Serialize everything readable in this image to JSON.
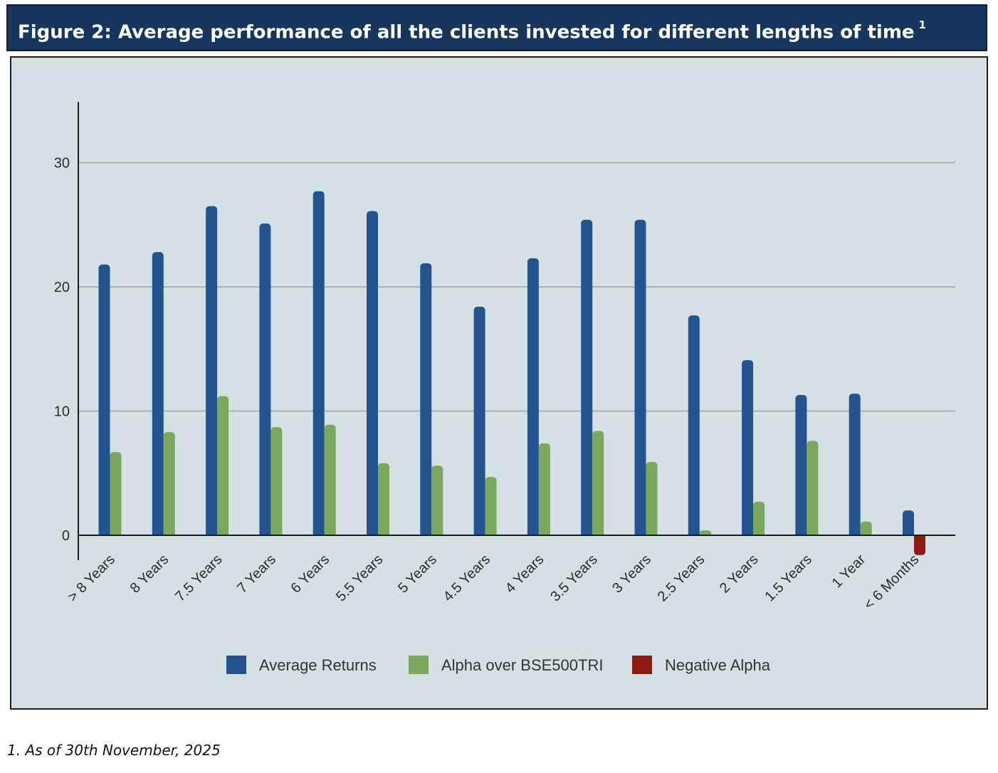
{
  "header": {
    "title": "Figure 2:  Average performance of all the clients invested for different lengths of time",
    "superscript": "1"
  },
  "footnote": "1. As of 30th November, 2025",
  "colors": {
    "header_bg": "#17365d",
    "plot_bg": "#d5e0e4",
    "average_returns": "#24548f",
    "alpha": "#7aa85c",
    "negative_alpha": "#8e1a12"
  },
  "chart_data": {
    "type": "bar",
    "title": "",
    "xlabel": "",
    "ylabel": "",
    "ylim": [
      -2,
      35
    ],
    "yticks": [
      0,
      10,
      20,
      30
    ],
    "grid": true,
    "legend_position": "bottom",
    "categories": [
      "> 8 Years",
      "8 Years",
      "7.5 Years",
      "7 Years",
      "6 Years",
      "5.5 Years",
      "5 Years",
      "4.5 Years",
      "4 Years",
      "3.5 Years",
      "3 Years",
      "2.5 Years",
      "2 Years",
      "1.5 Years",
      "1 Year",
      "< 6 Months"
    ],
    "series": [
      {
        "name": "Average Returns",
        "color": "#24548f",
        "values": [
          21.8,
          22.8,
          26.5,
          25.1,
          27.7,
          26.1,
          21.9,
          18.4,
          22.3,
          25.4,
          25.4,
          17.7,
          14.1,
          11.3,
          11.4,
          2.0
        ]
      },
      {
        "name": "Alpha over BSE500TRI",
        "color": "#7aa85c",
        "values": [
          6.7,
          8.3,
          11.2,
          8.7,
          8.9,
          5.8,
          5.6,
          4.7,
          7.4,
          8.4,
          5.9,
          0.4,
          2.7,
          7.6,
          1.1,
          null
        ]
      },
      {
        "name": "Negative Alpha",
        "color": "#8e1a12",
        "values": [
          null,
          null,
          null,
          null,
          null,
          null,
          null,
          null,
          null,
          null,
          null,
          null,
          null,
          null,
          null,
          -1.6
        ]
      }
    ]
  }
}
